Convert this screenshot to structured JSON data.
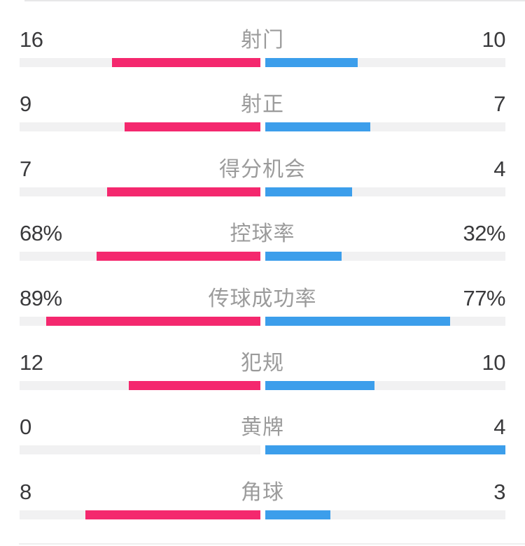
{
  "page": {
    "top_divider_color": "#E7E7E8",
    "bottom_divider_color": "#EFEFEF",
    "background_color": "#FFFFFF"
  },
  "chart_data": {
    "type": "bar",
    "subtype": "horizontal-opposed-comparison",
    "title": "",
    "legend_position": "none",
    "grid": false,
    "track_color": "#F1F1F2",
    "label_color": "#9B9B9B",
    "value_color": "#3A3A3C",
    "categories": [
      "射门",
      "射正",
      "得分机会",
      "控球率",
      "传球成功率",
      "犯规",
      "黄牌",
      "角球"
    ],
    "series": [
      {
        "name": "left-team",
        "color": "#F4286E",
        "values": [
          "16",
          "9",
          "7",
          "68%",
          "89%",
          "12",
          "0",
          "8"
        ]
      },
      {
        "name": "right-team",
        "color": "#3C9EEB",
        "values": [
          "10",
          "7",
          "4",
          "32%",
          "77%",
          "10",
          "4",
          "3"
        ]
      }
    ],
    "rows": [
      {
        "label": "射门",
        "left": "16",
        "right": "10",
        "left_num": 16,
        "right_num": 10,
        "is_percent": false
      },
      {
        "label": "射正",
        "left": "9",
        "right": "7",
        "left_num": 9,
        "right_num": 7,
        "is_percent": false
      },
      {
        "label": "得分机会",
        "left": "7",
        "right": "4",
        "left_num": 7,
        "right_num": 4,
        "is_percent": false
      },
      {
        "label": "控球率",
        "left": "68%",
        "right": "32%",
        "left_num": 68,
        "right_num": 32,
        "is_percent": true
      },
      {
        "label": "传球成功率",
        "left": "89%",
        "right": "77%",
        "left_num": 89,
        "right_num": 77,
        "is_percent": true
      },
      {
        "label": "犯规",
        "left": "12",
        "right": "10",
        "left_num": 12,
        "right_num": 10,
        "is_percent": false
      },
      {
        "label": "黄牌",
        "left": "0",
        "right": "4",
        "left_num": 0,
        "right_num": 4,
        "is_percent": false
      },
      {
        "label": "角球",
        "left": "8",
        "right": "3",
        "left_num": 8,
        "right_num": 3,
        "is_percent": false
      }
    ]
  }
}
